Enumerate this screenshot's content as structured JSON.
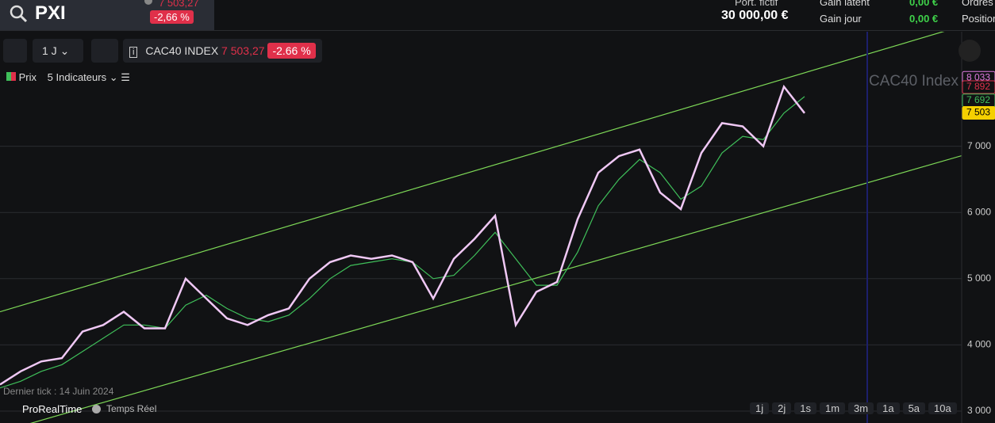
{
  "header": {
    "symbol": "PXI",
    "price": "7 503,27",
    "change": "-2,66 %",
    "portfolio_label": "Port. fictif",
    "portfolio_value": "30 000,00 €",
    "gain_latent_label": "Gain latent",
    "gain_latent": "0,00 €",
    "gain_jour_label": "Gain jour",
    "gain_jour": "0,00 €",
    "orders_label": "Ordres",
    "positions_label": "Position"
  },
  "toolbar": {
    "period": "1 J",
    "instrument": "CAC40 INDEX",
    "price": "7 503,27",
    "change": "-2.66 %"
  },
  "legend": {
    "price": "Prix",
    "indicators": "5 Indicateurs"
  },
  "footer": {
    "last_tick": "Dernier tick : 14 Juin 2024",
    "brand": "ProRealTime",
    "mode": "Temps Réel",
    "ranges": [
      "1j",
      "2j",
      "1s",
      "1m",
      "3m",
      "1a",
      "5a",
      "10a"
    ]
  },
  "chart_data": {
    "type": "line",
    "watermark": "CAC40 Index",
    "ylim": [
      2820,
      8730
    ],
    "yticks": [
      {
        "value": 3000,
        "label": "3 000"
      },
      {
        "value": 4000,
        "label": "4 000"
      },
      {
        "value": 5000,
        "label": "5 000"
      },
      {
        "value": 6000,
        "label": "6 000"
      },
      {
        "value": 7000,
        "label": "7 000"
      }
    ],
    "grid": true,
    "series": [
      {
        "color": "#f0c8f5",
        "values": [
          3400,
          3600,
          3750,
          3800,
          4200,
          4300,
          4500,
          4250,
          4250,
          5000,
          4700,
          4400,
          4300,
          4450,
          4550,
          5000,
          5250,
          5350,
          5300,
          5350,
          5250,
          4700,
          5300,
          5600,
          5950,
          4300,
          4800,
          4950,
          5900,
          6600,
          6850,
          6950,
          6300,
          6050,
          6900,
          7350,
          7300,
          7000,
          7900,
          7500
        ]
      },
      {
        "color": "#3fbf5a",
        "values": [
          3350,
          3450,
          3600,
          3700,
          3900,
          4100,
          4300,
          4300,
          4250,
          4600,
          4750,
          4550,
          4400,
          4350,
          4450,
          4700,
          5000,
          5200,
          5250,
          5300,
          5250,
          5000,
          5050,
          5350,
          5700,
          5300,
          4900,
          4900,
          5400,
          6100,
          6500,
          6800,
          6600,
          6200,
          6400,
          6900,
          7150,
          7100,
          7500,
          7750
        ]
      }
    ],
    "channel": [
      {
        "color": "#7ed957",
        "values": [
          4500,
          8814
        ]
      },
      {
        "color": "#7ed957",
        "values": [
          2682,
          6857
        ]
      }
    ],
    "price_tags": [
      {
        "value": 8033,
        "label": "8 033",
        "color": "#e07be0"
      },
      {
        "value": 7892,
        "label": "7 892",
        "color": "#e0304a"
      },
      {
        "value": 7692,
        "label": "7 692",
        "color": "#3fbf5a"
      },
      {
        "value": 7503,
        "label": "7 503",
        "color": "#f5d000"
      }
    ]
  }
}
